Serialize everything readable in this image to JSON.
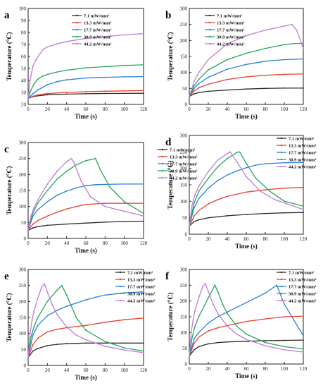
{
  "figure": {
    "colors": [
      "#2b2b2b",
      "#e8402a",
      "#2c7fd9",
      "#22a65a",
      "#c27ad8"
    ],
    "legend_entries": [
      "7.1 mW/mm²",
      "13.3 mW/mm²",
      "17.7 mW/mm²",
      "30.9 mW/mm²",
      "44.2 mW/mm²"
    ]
  },
  "chart_data": [
    {
      "panel": "a",
      "type": "line",
      "xlabel": "Time (s)",
      "ylabel": "Temperature (℃)",
      "xlim": [
        0,
        120
      ],
      "ylim": [
        20,
        100
      ],
      "xticks": [
        0,
        20,
        40,
        60,
        80,
        100,
        120
      ],
      "yticks": [
        20,
        30,
        40,
        50,
        60,
        70,
        80,
        90,
        100
      ],
      "legend_position": "top-center",
      "series": [
        {
          "name": "7.1 mW/mm²",
          "x": [
            0,
            5,
            10,
            20,
            40,
            60,
            80,
            100,
            120
          ],
          "y": [
            25,
            26.5,
            27.2,
            28,
            28.6,
            28.9,
            29.1,
            29.2,
            29.3
          ]
        },
        {
          "name": "13.3 mW/mm²",
          "x": [
            0,
            5,
            10,
            20,
            40,
            60,
            80,
            100,
            120
          ],
          "y": [
            25,
            26.8,
            27.8,
            29,
            30,
            30.6,
            31,
            31.3,
            31.5
          ]
        },
        {
          "name": "17.7 mW/mm²",
          "x": [
            0,
            5,
            10,
            20,
            30,
            40,
            60,
            80,
            100,
            120
          ],
          "y": [
            25,
            29,
            32,
            36.5,
            39,
            40.5,
            42,
            42.6,
            43,
            43.2
          ]
        },
        {
          "name": "30.9 mW/mm²",
          "x": [
            0,
            3,
            6,
            10,
            15,
            20,
            30,
            40,
            60,
            80,
            100,
            120
          ],
          "y": [
            25,
            32,
            37,
            41,
            43.5,
            45,
            47,
            48.5,
            50.5,
            51.5,
            52.5,
            53
          ]
        },
        {
          "name": "44.2 mW/mm²",
          "x": [
            0,
            2,
            5,
            8,
            12,
            16,
            20,
            30,
            40,
            60,
            80,
            100,
            120
          ],
          "y": [
            25,
            40,
            52,
            57,
            62,
            66,
            68,
            70.5,
            72.5,
            75,
            76.5,
            78,
            79
          ]
        }
      ]
    },
    {
      "panel": "b",
      "type": "line",
      "xlabel": "Time (s)",
      "ylabel": "Temperature (℃)",
      "xlim": [
        0,
        120
      ],
      "ylim": [
        0,
        300
      ],
      "xticks": [
        0,
        20,
        40,
        60,
        80,
        100,
        120
      ],
      "yticks": [
        0,
        50,
        100,
        150,
        200,
        250,
        300
      ],
      "legend_position": "top-left",
      "series": [
        {
          "name": "7.1 mW/mm²",
          "x": [
            0,
            5,
            10,
            20,
            40,
            60,
            80,
            100,
            120
          ],
          "y": [
            25,
            33,
            37,
            41,
            45,
            48,
            50,
            51,
            51
          ]
        },
        {
          "name": "13.3 mW/mm²",
          "x": [
            0,
            5,
            10,
            20,
            40,
            60,
            80,
            100,
            120
          ],
          "y": [
            25,
            42,
            52,
            63,
            78,
            86,
            91,
            94,
            95
          ]
        },
        {
          "name": "17.7 mW/mm²",
          "x": [
            0,
            5,
            10,
            20,
            40,
            60,
            80,
            100,
            120
          ],
          "y": [
            25,
            50,
            65,
            85,
            110,
            125,
            135,
            140,
            142
          ]
        },
        {
          "name": "30.9 mW/mm²",
          "x": [
            0,
            5,
            10,
            20,
            40,
            60,
            80,
            100,
            110,
            120
          ],
          "y": [
            25,
            58,
            78,
            108,
            140,
            160,
            175,
            187,
            190,
            191
          ]
        },
        {
          "name": "44.2 mW/mm²",
          "x": [
            0,
            5,
            10,
            20,
            40,
            60,
            80,
            100,
            108,
            113,
            120
          ],
          "y": [
            25,
            72,
            100,
            140,
            190,
            215,
            232,
            245,
            250,
            232,
            175
          ]
        }
      ]
    },
    {
      "panel": "c",
      "type": "line",
      "xlabel": "Time (s)",
      "ylabel": "Temperature (℃)",
      "xlim": [
        0,
        120
      ],
      "ylim": [
        0,
        300
      ],
      "xticks": [
        0,
        20,
        40,
        60,
        80,
        100,
        120
      ],
      "yticks": [
        0,
        50,
        100,
        150,
        200,
        250,
        300
      ],
      "legend_position": "right",
      "series": [
        {
          "name": "7.1 mW/mm²",
          "x": [
            0,
            5,
            10,
            20,
            40,
            60,
            80,
            100,
            120
          ],
          "y": [
            25,
            33,
            37,
            41,
            45,
            48,
            51,
            53,
            54
          ]
        },
        {
          "name": "13.3 mW/mm²",
          "x": [
            0,
            5,
            10,
            20,
            30,
            40,
            50,
            60,
            80,
            100,
            120
          ],
          "y": [
            25,
            45,
            56,
            70,
            82,
            92,
            100,
            106,
            110,
            110,
            110
          ]
        },
        {
          "name": "17.7 mW/mm²",
          "x": [
            0,
            5,
            10,
            20,
            30,
            40,
            50,
            60,
            70,
            80,
            100,
            120
          ],
          "y": [
            25,
            70,
            90,
            115,
            135,
            148,
            158,
            165,
            168,
            169,
            170,
            170
          ]
        },
        {
          "name": "30.9 mW/mm²",
          "x": [
            0,
            5,
            10,
            20,
            30,
            40,
            50,
            60,
            70,
            75,
            85,
            100,
            120
          ],
          "y": [
            25,
            80,
            110,
            150,
            185,
            210,
            230,
            243,
            250,
            215,
            160,
            115,
            78
          ]
        },
        {
          "name": "44.2 mW/mm²",
          "x": [
            0,
            3,
            6,
            10,
            20,
            30,
            40,
            45,
            48,
            55,
            65,
            80,
            100,
            120
          ],
          "y": [
            25,
            70,
            95,
            120,
            170,
            210,
            240,
            250,
            235,
            180,
            130,
            100,
            85,
            70
          ]
        }
      ]
    },
    {
      "panel": "d",
      "type": "line",
      "xlabel": "Time (s)",
      "ylabel": "Temperature (℃)",
      "xlim": [
        0,
        120
      ],
      "ylim": [
        0,
        300
      ],
      "xticks": [
        0,
        20,
        40,
        60,
        80,
        100,
        120
      ],
      "yticks": [
        0,
        50,
        100,
        150,
        200,
        250,
        300
      ],
      "legend_position": "top-right",
      "series": [
        {
          "name": "7.1 mW/mm²",
          "x": [
            0,
            5,
            10,
            20,
            40,
            60,
            80,
            100,
            120
          ],
          "y": [
            25,
            38,
            44,
            50,
            56,
            60,
            63,
            65,
            66
          ]
        },
        {
          "name": "13.3 mW/mm²",
          "x": [
            0,
            5,
            10,
            20,
            30,
            40,
            60,
            80,
            100,
            120
          ],
          "y": [
            25,
            55,
            72,
            92,
            105,
            115,
            128,
            135,
            140,
            142
          ]
        },
        {
          "name": "17.7 mW/mm²",
          "x": [
            0,
            5,
            10,
            20,
            30,
            40,
            50,
            60,
            70,
            80,
            100,
            120
          ],
          "y": [
            25,
            80,
            108,
            140,
            163,
            180,
            192,
            202,
            210,
            214,
            217,
            218
          ]
        },
        {
          "name": "30.9 mW/mm²",
          "x": [
            0,
            5,
            10,
            20,
            30,
            40,
            50,
            53,
            60,
            70,
            85,
            100,
            120
          ],
          "y": [
            25,
            95,
            130,
            170,
            205,
            230,
            248,
            250,
            215,
            170,
            130,
            100,
            85
          ]
        },
        {
          "name": "44.2 mW/mm²",
          "x": [
            0,
            3,
            6,
            10,
            20,
            30,
            40,
            43,
            50,
            60,
            75,
            90,
            105,
            120
          ],
          "y": [
            25,
            90,
            120,
            145,
            190,
            225,
            245,
            250,
            220,
            175,
            130,
            105,
            90,
            75
          ]
        }
      ]
    },
    {
      "panel": "e",
      "type": "line",
      "xlabel": "Time (s)",
      "ylabel": "Temperature (℃)",
      "xlim": [
        0,
        120
      ],
      "ylim": [
        0,
        300
      ],
      "xticks": [
        0,
        20,
        40,
        60,
        80,
        100,
        120
      ],
      "yticks": [
        0,
        50,
        100,
        150,
        200,
        250,
        300
      ],
      "legend_position": "top-right",
      "series": [
        {
          "name": "7.1 mW/mm²",
          "x": [
            0,
            5,
            10,
            20,
            30,
            40,
            60,
            80,
            100,
            120
          ],
          "y": [
            25,
            45,
            53,
            62,
            66,
            68,
            70,
            70,
            70,
            70
          ]
        },
        {
          "name": "13.3 mW/mm²",
          "x": [
            0,
            5,
            10,
            20,
            30,
            40,
            60,
            80,
            100,
            120
          ],
          "y": [
            25,
            65,
            85,
            105,
            113,
            118,
            125,
            135,
            143,
            148
          ]
        },
        {
          "name": "17.7 mW/mm²",
          "x": [
            0,
            5,
            10,
            20,
            30,
            40,
            50,
            60,
            70,
            80,
            100,
            120
          ],
          "y": [
            25,
            95,
            125,
            155,
            172,
            185,
            195,
            205,
            213,
            220,
            227,
            230
          ]
        },
        {
          "name": "30.9 mW/mm²",
          "x": [
            0,
            3,
            6,
            10,
            20,
            30,
            35,
            40,
            50,
            60,
            80,
            100,
            120
          ],
          "y": [
            25,
            90,
            120,
            150,
            200,
            235,
            250,
            220,
            150,
            110,
            75,
            55,
            45
          ]
        },
        {
          "name": "44.2 mW/mm²",
          "x": [
            0,
            2,
            4,
            6,
            10,
            14,
            17,
            20,
            25,
            30,
            40,
            50,
            60,
            80,
            100,
            120
          ],
          "y": [
            25,
            100,
            140,
            170,
            210,
            245,
            255,
            230,
            190,
            160,
            120,
            95,
            80,
            60,
            48,
            40
          ]
        }
      ]
    },
    {
      "panel": "f",
      "type": "line",
      "xlabel": "Time (s)",
      "ylabel": "Temperature (℃)",
      "xlim": [
        0,
        120
      ],
      "ylim": [
        0,
        300
      ],
      "xticks": [
        0,
        20,
        40,
        60,
        80,
        100,
        120
      ],
      "yticks": [
        0,
        50,
        100,
        150,
        200,
        250,
        300
      ],
      "legend_position": "top-right",
      "series": [
        {
          "name": "7.1 mW/mm²",
          "x": [
            0,
            5,
            10,
            20,
            30,
            40,
            60,
            80,
            100,
            120
          ],
          "y": [
            25,
            45,
            55,
            64,
            68,
            70,
            72,
            74,
            75,
            76
          ]
        },
        {
          "name": "13.3 mW/mm²",
          "x": [
            0,
            5,
            10,
            20,
            30,
            40,
            60,
            80,
            100,
            120
          ],
          "y": [
            25,
            65,
            85,
            105,
            115,
            122,
            135,
            143,
            150,
            152
          ]
        },
        {
          "name": "17.7 mW/mm²",
          "x": [
            0,
            5,
            10,
            20,
            30,
            40,
            50,
            60,
            70,
            80,
            92,
            100,
            110,
            120
          ],
          "y": [
            25,
            80,
            100,
            130,
            150,
            165,
            180,
            195,
            210,
            225,
            250,
            190,
            140,
            90
          ]
        },
        {
          "name": "30.9 mW/mm²",
          "x": [
            0,
            3,
            6,
            10,
            20,
            27,
            30,
            35,
            40,
            50,
            60,
            80,
            100,
            120
          ],
          "y": [
            25,
            85,
            120,
            150,
            210,
            250,
            230,
            190,
            160,
            120,
            95,
            68,
            55,
            48
          ]
        },
        {
          "name": "44.2 mW/mm²",
          "x": [
            0,
            2,
            4,
            6,
            10,
            14,
            17,
            20,
            25,
            30,
            40,
            50,
            60,
            80,
            100,
            120
          ],
          "y": [
            25,
            100,
            140,
            170,
            210,
            245,
            255,
            230,
            190,
            160,
            120,
            95,
            78,
            58,
            45,
            38
          ]
        }
      ]
    }
  ]
}
